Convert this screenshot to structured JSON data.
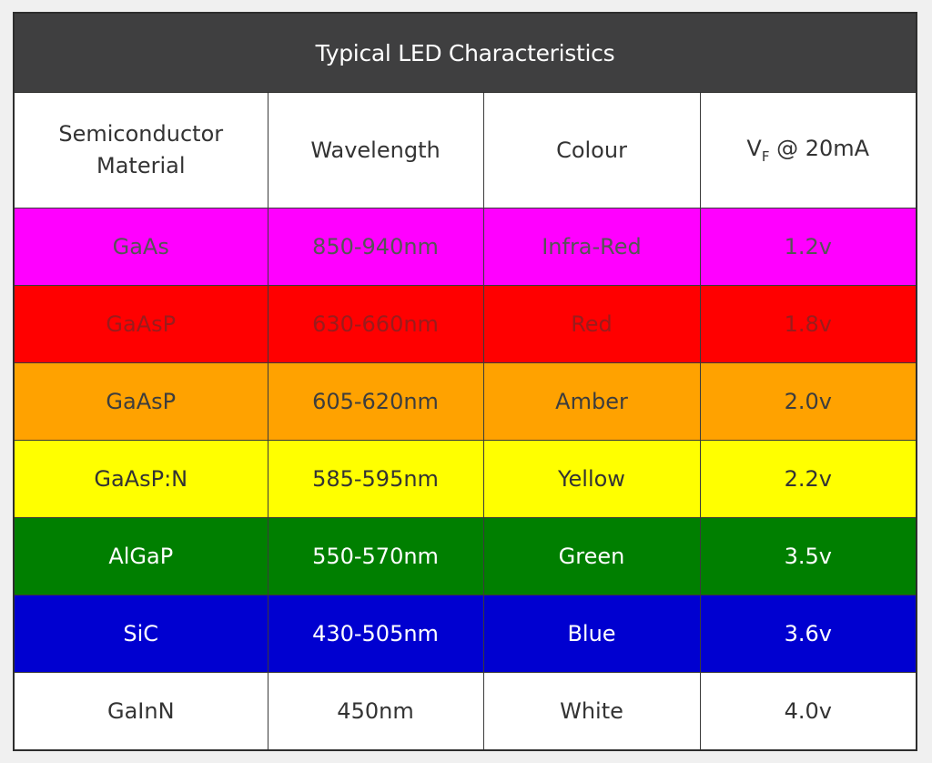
{
  "table": {
    "title": "Typical LED Characteristics",
    "headers": {
      "material": "Semiconductor Material",
      "wavelength": "Wavelength",
      "colour": "Colour",
      "vf_main": "V",
      "vf_sub": "F",
      "vf_rest": " @ 20mA"
    },
    "rows": [
      {
        "material": "GaAs",
        "wavelength": "850-940nm",
        "colour": "Infra-Red",
        "vf": "1.2v",
        "bg": "#ff00ff",
        "fg": "#555555"
      },
      {
        "material": "GaAsP",
        "wavelength": "630-660nm",
        "colour": "Red",
        "vf": "1.8v",
        "bg": "#ff0000",
        "fg": "#9a1c1c"
      },
      {
        "material": "GaAsP",
        "wavelength": "605-620nm",
        "colour": "Amber",
        "vf": "2.0v",
        "bg": "#ffa200",
        "fg": "#3d3d3d"
      },
      {
        "material": "GaAsP:N",
        "wavelength": "585-595nm",
        "colour": "Yellow",
        "vf": "2.2v",
        "bg": "#ffff00",
        "fg": "#333333"
      },
      {
        "material": "AlGaP",
        "wavelength": "550-570nm",
        "colour": "Green",
        "vf": "3.5v",
        "bg": "#007f00",
        "fg": "#ffffff"
      },
      {
        "material": "SiC",
        "wavelength": "430-505nm",
        "colour": "Blue",
        "vf": "3.6v",
        "bg": "#0000d0",
        "fg": "#ffffff"
      },
      {
        "material": "GaInN",
        "wavelength": "450nm",
        "colour": "White",
        "vf": "4.0v",
        "bg": "#ffffff",
        "fg": "#333333"
      }
    ]
  }
}
